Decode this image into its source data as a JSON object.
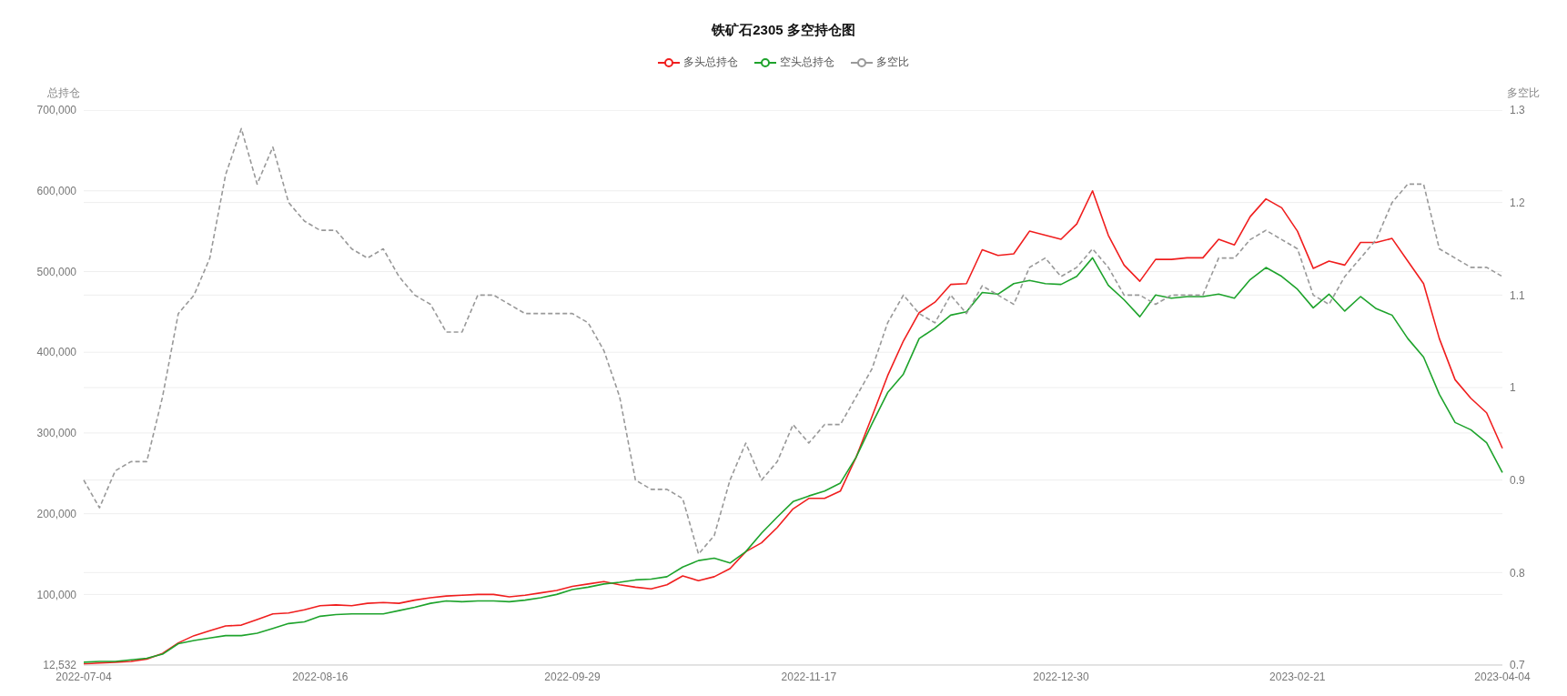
{
  "chart_data": {
    "type": "line",
    "title": "铁矿石2305 多空持仓图",
    "ylabel": "总持仓",
    "y2label": "多空比",
    "categories": [
      "2022-07-04",
      null,
      null,
      null,
      null,
      null,
      null,
      null,
      null,
      null,
      null,
      null,
      null,
      null,
      null,
      "2022-08-16",
      null,
      null,
      null,
      null,
      null,
      null,
      null,
      null,
      null,
      null,
      null,
      null,
      null,
      null,
      null,
      "2022-09-29",
      null,
      null,
      null,
      null,
      null,
      null,
      null,
      null,
      null,
      null,
      null,
      null,
      null,
      null,
      "2022-11-17",
      null,
      null,
      null,
      null,
      null,
      null,
      null,
      null,
      null,
      null,
      null,
      null,
      null,
      null,
      null,
      "2022-12-30",
      null,
      null,
      null,
      null,
      null,
      null,
      null,
      null,
      null,
      null,
      null,
      null,
      null,
      null,
      "2023-02-21",
      null,
      null,
      null,
      null,
      null,
      null,
      null,
      null,
      null,
      null,
      null,
      null,
      "2023-04-04"
    ],
    "series": [
      {
        "name": "多头总持仓",
        "color": "#f01e1e",
        "values": [
          14000,
          15000,
          16000,
          17000,
          20000,
          27000,
          40000,
          49000,
          55000,
          61000,
          62000,
          69000,
          76000,
          77000,
          81000,
          86000,
          87000,
          86000,
          89000,
          90000,
          89000,
          93000,
          96000,
          98000,
          99000,
          100000,
          100000,
          97000,
          99000,
          102000,
          105000,
          110000,
          113000,
          116000,
          112000,
          109000,
          107000,
          112000,
          123000,
          117000,
          122000,
          132000,
          153000,
          164000,
          183000,
          206000,
          219000,
          219000,
          228000,
          270000,
          320000,
          371000,
          414000,
          449000,
          462000,
          484000,
          485000,
          527000,
          520000,
          522000,
          550000,
          545000,
          540000,
          559000,
          600000,
          545000,
          508000,
          488000,
          515000,
          515000,
          517000,
          517000,
          540000,
          533000,
          568000,
          590000,
          579000,
          550000,
          504000,
          513000,
          508000,
          536000,
          536000,
          541000,
          513000,
          485000,
          417000,
          366000,
          343000,
          325000,
          281000
        ]
      },
      {
        "name": "空头总持仓",
        "color": "#1ea32c",
        "values": [
          16000,
          17000,
          17000,
          19000,
          21000,
          26000,
          39000,
          43000,
          46000,
          49000,
          49000,
          52000,
          58000,
          64000,
          66000,
          73000,
          75000,
          76000,
          76000,
          76000,
          80000,
          84000,
          89000,
          92000,
          91000,
          92000,
          92000,
          91000,
          93000,
          96000,
          100000,
          106000,
          109000,
          113000,
          115000,
          118000,
          119000,
          122000,
          134000,
          142000,
          145000,
          139000,
          153000,
          176000,
          196000,
          215000,
          222000,
          228000,
          238000,
          270000,
          311000,
          350000,
          373000,
          417000,
          430000,
          446000,
          450000,
          474000,
          472000,
          485000,
          489000,
          485000,
          484000,
          494000,
          517000,
          483000,
          465000,
          444000,
          471000,
          467000,
          469000,
          469000,
          472000,
          467000,
          490000,
          505000,
          494000,
          478000,
          455000,
          472000,
          451000,
          469000,
          454000,
          446000,
          417000,
          394000,
          348000,
          313000,
          304000,
          288000,
          251000
        ]
      },
      {
        "name": "多空比",
        "color": "#999999",
        "axis": "y2",
        "line_style": "dashed",
        "values": [
          0.9,
          0.87,
          0.91,
          0.92,
          0.92,
          0.99,
          1.08,
          1.1,
          1.14,
          1.23,
          1.28,
          1.22,
          1.26,
          1.2,
          1.18,
          1.17,
          1.17,
          1.15,
          1.14,
          1.15,
          1.12,
          1.1,
          1.09,
          1.06,
          1.06,
          1.1,
          1.1,
          1.09,
          1.08,
          1.08,
          1.08,
          1.08,
          1.07,
          1.04,
          0.99,
          0.9,
          0.89,
          0.89,
          0.88,
          0.82,
          0.84,
          0.9,
          0.94,
          0.9,
          0.92,
          0.96,
          0.94,
          0.96,
          0.96,
          0.99,
          1.02,
          1.07,
          1.1,
          1.08,
          1.07,
          1.1,
          1.08,
          1.11,
          1.1,
          1.09,
          1.13,
          1.14,
          1.12,
          1.13,
          1.15,
          1.13,
          1.1,
          1.1,
          1.09,
          1.1,
          1.1,
          1.1,
          1.14,
          1.14,
          1.16,
          1.17,
          1.16,
          1.15,
          1.1,
          1.09,
          1.12,
          1.14,
          1.16,
          1.2,
          1.22,
          1.22,
          1.15,
          1.14,
          1.13,
          1.13,
          1.12
        ]
      }
    ],
    "ylim": [
      12532,
      700000
    ],
    "yticks": [
      {
        "value": 12532,
        "label": "12,532"
      },
      {
        "value": 100000,
        "label": "100,000"
      },
      {
        "value": 200000,
        "label": "200,000"
      },
      {
        "value": 300000,
        "label": "300,000"
      },
      {
        "value": 400000,
        "label": "400,000"
      },
      {
        "value": 500000,
        "label": "500,000"
      },
      {
        "value": 600000,
        "label": "600,000"
      },
      {
        "value": 700000,
        "label": "700,000"
      }
    ],
    "y2lim": [
      0.7,
      1.3
    ],
    "y2ticks": [
      0.7,
      0.8,
      0.9,
      1,
      1.1,
      1.2,
      1.3
    ],
    "grid": "y",
    "legend": "top",
    "line_style": "solid"
  }
}
